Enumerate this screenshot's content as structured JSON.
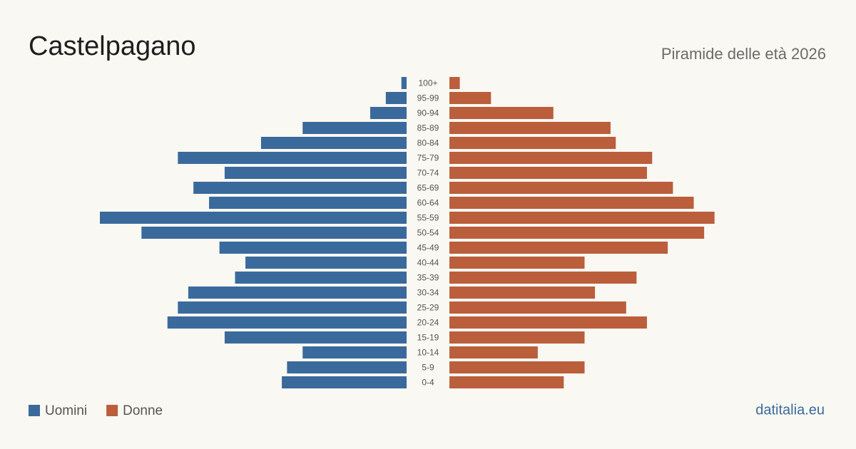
{
  "chart_data": {
    "type": "pyramid",
    "title": "Castelpagano",
    "subtitle": "Piramide delle età 2026",
    "source": "datitalia.eu",
    "categories": [
      "100+",
      "95-99",
      "90-94",
      "85-89",
      "80-84",
      "75-79",
      "70-74",
      "65-69",
      "60-64",
      "55-59",
      "50-54",
      "45-49",
      "40-44",
      "35-39",
      "30-34",
      "25-29",
      "20-24",
      "15-19",
      "10-14",
      "5-9",
      "0-4"
    ],
    "series": [
      {
        "name": "Uomini",
        "color": "#3a6a9c",
        "values": [
          1,
          4,
          7,
          20,
          28,
          44,
          35,
          41,
          38,
          59,
          51,
          36,
          31,
          33,
          42,
          44,
          46,
          35,
          20,
          23,
          24
        ]
      },
      {
        "name": "Donne",
        "color": "#bb5e3c",
        "values": [
          2,
          8,
          20,
          31,
          32,
          39,
          38,
          43,
          47,
          51,
          49,
          42,
          26,
          36,
          28,
          34,
          38,
          26,
          17,
          26,
          22
        ]
      }
    ]
  }
}
